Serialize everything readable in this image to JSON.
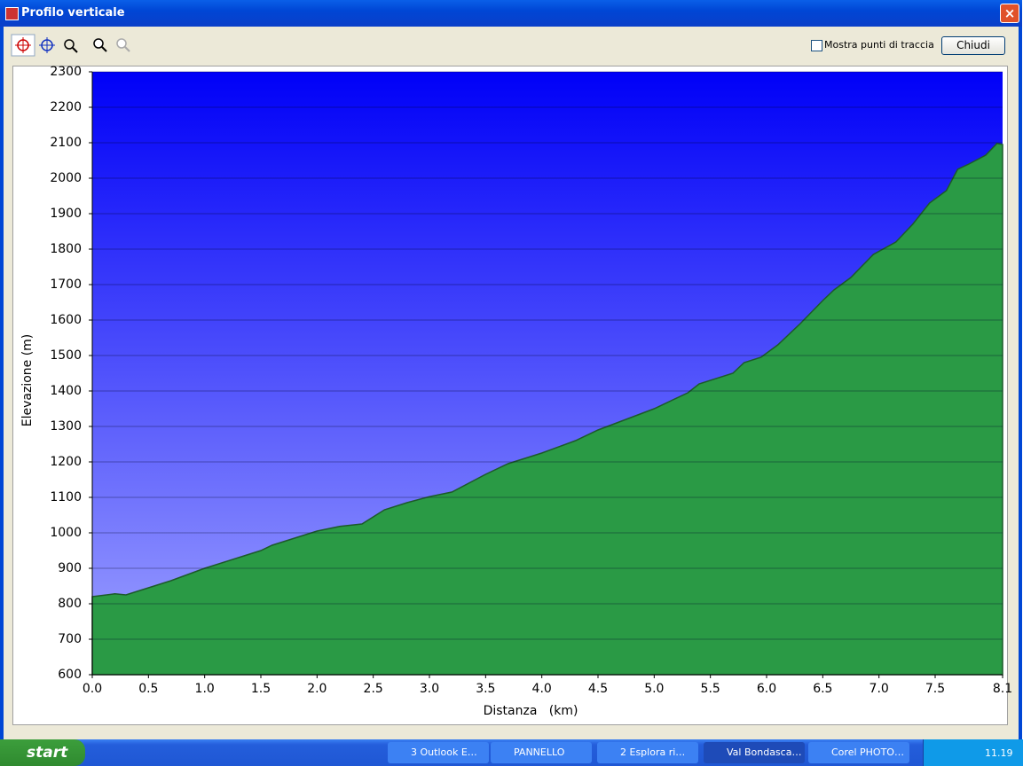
{
  "window": {
    "title": "Profilo verticale"
  },
  "toolbar": {
    "checkbox_label": "Mostra punti di traccia",
    "button": "Chiudi"
  },
  "chart_data": {
    "type": "area",
    "xlabel": "Distanza   (km)",
    "ylabel": "Elevazione (m)",
    "x": [
      0.0,
      0.2,
      0.3,
      0.5,
      0.7,
      1.0,
      1.3,
      1.5,
      1.6,
      1.8,
      2.0,
      2.2,
      2.4,
      2.6,
      2.8,
      3.0,
      3.2,
      3.5,
      3.7,
      4.0,
      4.3,
      4.5,
      5.0,
      5.3,
      5.4,
      5.7,
      5.8,
      5.95,
      6.1,
      6.3,
      6.5,
      6.6,
      6.75,
      6.95,
      7.15,
      7.3,
      7.45,
      7.6,
      7.7,
      7.8,
      7.95,
      8.05,
      8.1
    ],
    "values": [
      820,
      828,
      825,
      845,
      865,
      900,
      930,
      950,
      965,
      985,
      1005,
      1018,
      1025,
      1065,
      1085,
      1102,
      1115,
      1165,
      1195,
      1225,
      1260,
      1290,
      1350,
      1395,
      1420,
      1450,
      1480,
      1495,
      1530,
      1590,
      1655,
      1685,
      1720,
      1785,
      1820,
      1870,
      1930,
      1965,
      2025,
      2040,
      2065,
      2098,
      2095
    ],
    "xlim": [
      0,
      8.1
    ],
    "ylim": [
      600,
      2300
    ],
    "xticks": [
      {
        "value": 0,
        "label": "0.0"
      },
      0.5,
      {
        "value": 1,
        "label": "1.0"
      },
      1.5,
      {
        "value": 2,
        "label": "2.0"
      },
      2.5,
      {
        "value": 3,
        "label": "3.0"
      },
      3.5,
      {
        "value": 4,
        "label": "4.0"
      },
      4.5,
      {
        "value": 5,
        "label": "5.0"
      },
      5.5,
      {
        "value": 6,
        "label": "6.0"
      },
      6.5,
      {
        "value": 7,
        "label": "7.0"
      },
      7.5,
      8.1
    ],
    "yticks": [
      600,
      700,
      800,
      900,
      1000,
      1100,
      1200,
      1300,
      1400,
      1500,
      1600,
      1700,
      1800,
      1900,
      2000,
      2100,
      2200,
      2300
    ],
    "grid": true,
    "color": "#2a9a45",
    "background_colors": [
      "#0000f8",
      "#a0a4ff"
    ]
  },
  "taskbar": {
    "start": "start",
    "items": [
      "3 Outlook E…",
      "PANNELLO",
      "2 Esplora ri…",
      "Val Bondasca…",
      "Corel PHOTO…"
    ],
    "clock": "11.19"
  }
}
